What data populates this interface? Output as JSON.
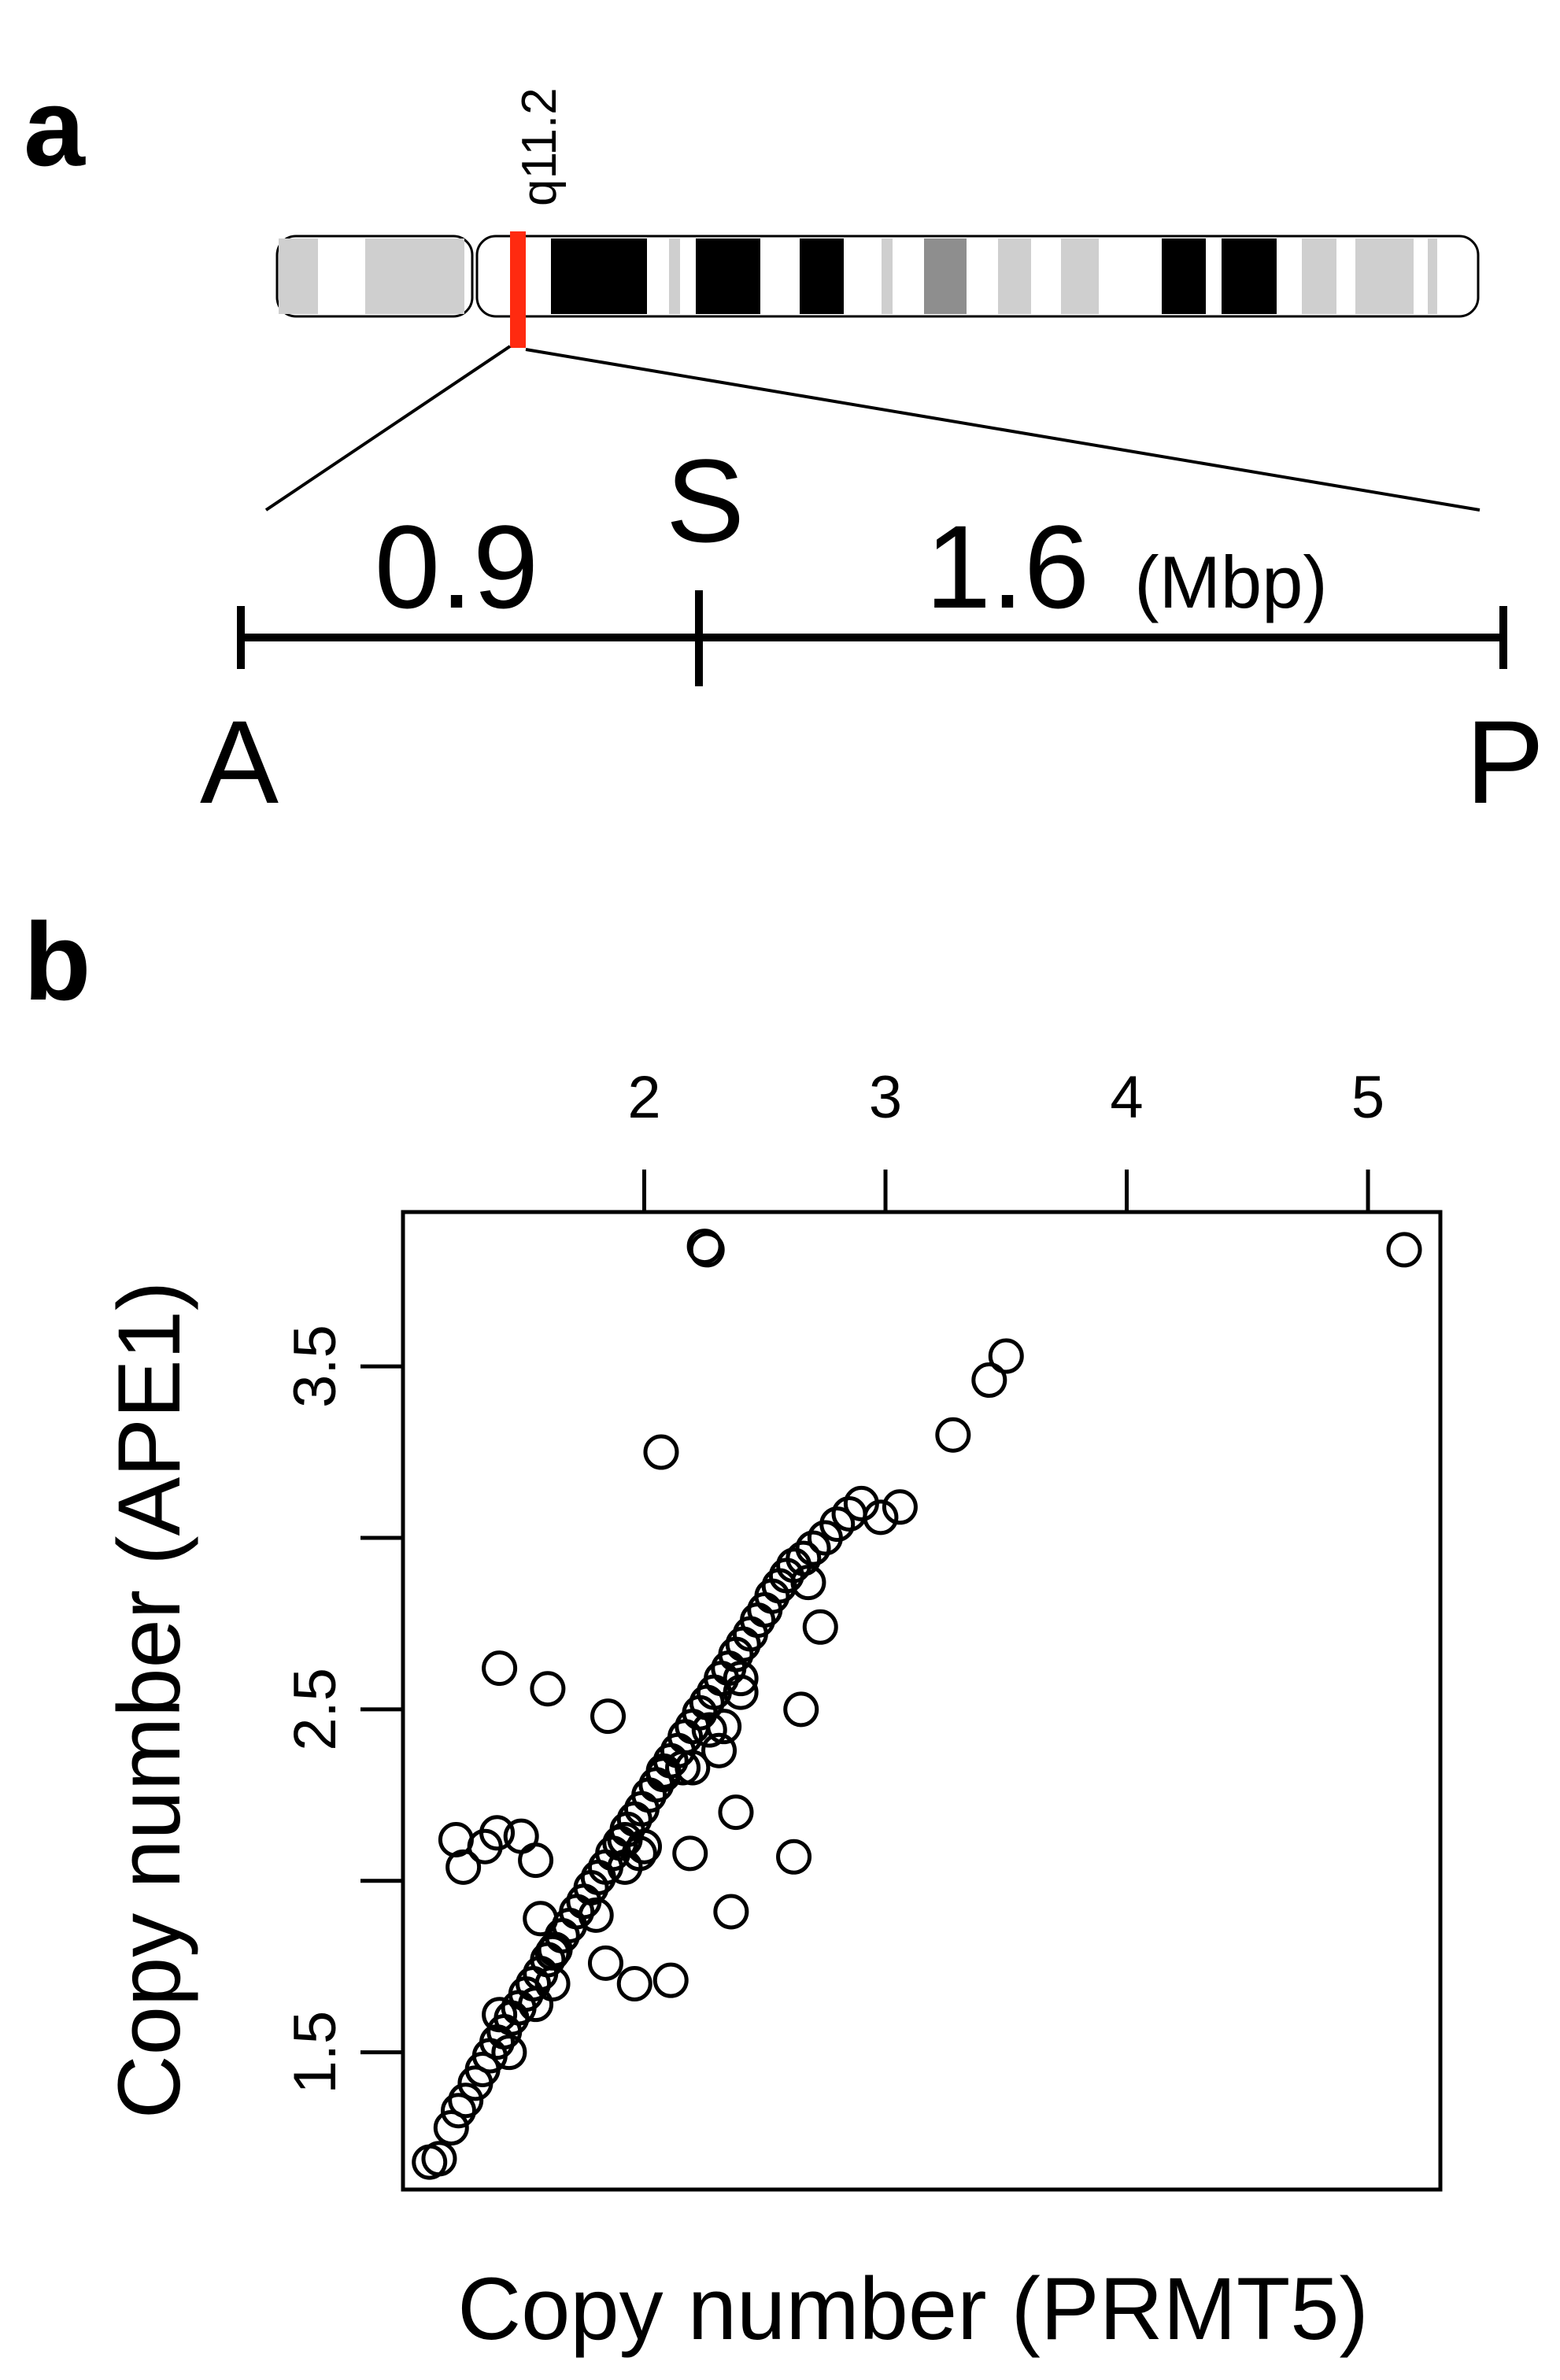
{
  "panel_a": {
    "label": "a",
    "band_label": "q11.2",
    "left_distance": "0.9",
    "right_distance": "1.6",
    "unit": "(Mbp)",
    "marker_left": "A",
    "marker_mid": "S",
    "marker_right": "P",
    "highlight_color": "#ff2a10"
  },
  "panel_b": {
    "label": "b"
  },
  "chart_data": {
    "type": "scatter",
    "title": "",
    "xlabel": "Copy number (PRMT5)",
    "ylabel": "Copy number (APE1)",
    "xlim": [
      1.0,
      5.3
    ],
    "ylim": [
      1.1,
      3.95
    ],
    "xticks": [
      2,
      3,
      4,
      5
    ],
    "yticks": [
      1.5,
      2.5,
      3.5
    ],
    "x_axis_position": "top",
    "grid": false,
    "marker": "open-circle",
    "points": [
      {
        "x": 1.11,
        "y": 1.18
      },
      {
        "x": 1.15,
        "y": 1.19
      },
      {
        "x": 1.2,
        "y": 1.28
      },
      {
        "x": 1.23,
        "y": 1.33
      },
      {
        "x": 1.26,
        "y": 1.36
      },
      {
        "x": 1.3,
        "y": 1.41
      },
      {
        "x": 1.33,
        "y": 1.45
      },
      {
        "x": 1.36,
        "y": 1.49
      },
      {
        "x": 1.39,
        "y": 1.53
      },
      {
        "x": 1.42,
        "y": 1.56
      },
      {
        "x": 1.45,
        "y": 1.6
      },
      {
        "x": 1.48,
        "y": 1.63
      },
      {
        "x": 1.51,
        "y": 1.67
      },
      {
        "x": 1.54,
        "y": 1.7
      },
      {
        "x": 1.57,
        "y": 1.73
      },
      {
        "x": 1.6,
        "y": 1.77
      },
      {
        "x": 1.63,
        "y": 1.8
      },
      {
        "x": 1.66,
        "y": 1.84
      },
      {
        "x": 1.69,
        "y": 1.87
      },
      {
        "x": 1.72,
        "y": 1.91
      },
      {
        "x": 1.75,
        "y": 1.94
      },
      {
        "x": 1.78,
        "y": 1.98
      },
      {
        "x": 1.81,
        "y": 2.01
      },
      {
        "x": 1.84,
        "y": 2.04
      },
      {
        "x": 1.87,
        "y": 2.08
      },
      {
        "x": 1.9,
        "y": 2.11
      },
      {
        "x": 1.93,
        "y": 2.15
      },
      {
        "x": 1.96,
        "y": 2.18
      },
      {
        "x": 1.99,
        "y": 2.21
      },
      {
        "x": 2.02,
        "y": 2.25
      },
      {
        "x": 2.05,
        "y": 2.28
      },
      {
        "x": 2.08,
        "y": 2.32
      },
      {
        "x": 2.11,
        "y": 2.35
      },
      {
        "x": 2.14,
        "y": 2.38
      },
      {
        "x": 2.17,
        "y": 2.42
      },
      {
        "x": 2.2,
        "y": 2.45
      },
      {
        "x": 2.23,
        "y": 2.49
      },
      {
        "x": 2.26,
        "y": 2.52
      },
      {
        "x": 2.29,
        "y": 2.55
      },
      {
        "x": 2.32,
        "y": 2.59
      },
      {
        "x": 2.35,
        "y": 2.62
      },
      {
        "x": 2.38,
        "y": 2.66
      },
      {
        "x": 2.41,
        "y": 2.69
      },
      {
        "x": 2.44,
        "y": 2.72
      },
      {
        "x": 2.47,
        "y": 2.76
      },
      {
        "x": 2.5,
        "y": 2.79
      },
      {
        "x": 2.53,
        "y": 2.83
      },
      {
        "x": 2.56,
        "y": 2.86
      },
      {
        "x": 2.59,
        "y": 2.89
      },
      {
        "x": 2.62,
        "y": 2.92
      },
      {
        "x": 2.66,
        "y": 2.94
      },
      {
        "x": 2.7,
        "y": 2.97
      },
      {
        "x": 2.75,
        "y": 3.0
      },
      {
        "x": 2.8,
        "y": 3.04
      },
      {
        "x": 2.85,
        "y": 3.07
      },
      {
        "x": 2.9,
        "y": 3.1
      },
      {
        "x": 1.44,
        "y": 1.5
      },
      {
        "x": 1.62,
        "y": 1.7
      },
      {
        "x": 1.8,
        "y": 1.9
      },
      {
        "x": 2.0,
        "y": 2.1
      },
      {
        "x": 2.2,
        "y": 2.33
      },
      {
        "x": 2.4,
        "y": 2.55
      },
      {
        "x": 1.55,
        "y": 1.64
      },
      {
        "x": 1.92,
        "y": 2.04
      },
      {
        "x": 2.33,
        "y": 2.45
      },
      {
        "x": 1.4,
        "y": 2.62
      },
      {
        "x": 1.6,
        "y": 2.56
      },
      {
        "x": 1.85,
        "y": 2.48
      },
      {
        "x": 1.22,
        "y": 2.12
      },
      {
        "x": 1.25,
        "y": 2.04
      },
      {
        "x": 1.34,
        "y": 2.1
      },
      {
        "x": 1.39,
        "y": 2.14
      },
      {
        "x": 1.49,
        "y": 2.13
      },
      {
        "x": 1.55,
        "y": 2.06
      },
      {
        "x": 1.92,
        "y": 2.12
      },
      {
        "x": 1.98,
        "y": 2.08
      },
      {
        "x": 2.08,
        "y": 2.31
      },
      {
        "x": 2.16,
        "y": 2.33
      },
      {
        "x": 2.19,
        "y": 2.08
      },
      {
        "x": 2.27,
        "y": 2.44
      },
      {
        "x": 2.31,
        "y": 2.38
      },
      {
        "x": 2.36,
        "y": 1.91
      },
      {
        "x": 2.38,
        "y": 2.2
      },
      {
        "x": 2.4,
        "y": 2.59
      },
      {
        "x": 2.62,
        "y": 2.07
      },
      {
        "x": 2.65,
        "y": 2.5
      },
      {
        "x": 2.68,
        "y": 2.87
      },
      {
        "x": 2.73,
        "y": 2.74
      },
      {
        "x": 1.57,
        "y": 1.89
      },
      {
        "x": 1.62,
        "y": 1.79
      },
      {
        "x": 1.84,
        "y": 1.76
      },
      {
        "x": 1.96,
        "y": 1.7
      },
      {
        "x": 2.11,
        "y": 1.71
      },
      {
        "x": 1.4,
        "y": 1.61
      },
      {
        "x": 2.07,
        "y": 3.25
      },
      {
        "x": 2.26,
        "y": 3.84
      },
      {
        "x": 2.25,
        "y": 3.85
      },
      {
        "x": 2.98,
        "y": 3.06
      },
      {
        "x": 3.06,
        "y": 3.09
      },
      {
        "x": 3.28,
        "y": 3.3
      },
      {
        "x": 3.43,
        "y": 3.46
      },
      {
        "x": 3.5,
        "y": 3.53
      },
      {
        "x": 5.15,
        "y": 3.84
      }
    ]
  }
}
